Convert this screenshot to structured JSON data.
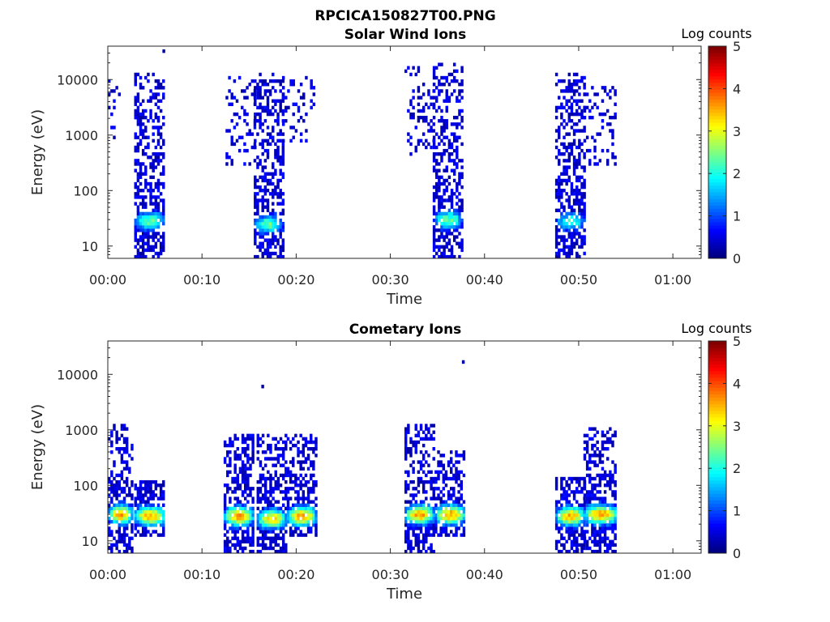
{
  "figure_title": "RPCICA150827T00.PNG",
  "chart_data": [
    {
      "type": "heatmap",
      "title": "Solar Wind Ions",
      "xlabel": "Time",
      "ylabel": "Energy (eV)",
      "x_ticks": [
        "00:00",
        "00:10",
        "00:20",
        "00:30",
        "00:40",
        "00:50",
        "01:00"
      ],
      "y_ticks": [
        "10",
        "100",
        "1000",
        "10000"
      ],
      "y_scale": "log",
      "xlim_minutes": [
        0,
        63
      ],
      "ylim": [
        6,
        40000
      ],
      "colorbar": {
        "label": "Log counts",
        "ticks": [
          "0",
          "1",
          "2",
          "3",
          "4",
          "5"
        ],
        "range": [
          0,
          5
        ],
        "colormap": "jet"
      },
      "bursts": [
        {
          "t0": 0.0,
          "t1": 1.3,
          "e0": 500,
          "e1": 14000,
          "peak_e": 0,
          "peak_v": 0,
          "dense": false,
          "low": false
        },
        {
          "t0": 2.8,
          "t1": 6.0,
          "e0": 6,
          "e1": 14000,
          "peak_e": 28,
          "peak_v": 2.3,
          "dense": true,
          "low": true
        },
        {
          "t0": 12.5,
          "t1": 15.5,
          "e0": 300,
          "e1": 12000,
          "peak_e": 0,
          "peak_v": 0,
          "dense": false,
          "low": false
        },
        {
          "t0": 15.5,
          "t1": 18.5,
          "e0": 6,
          "e1": 14000,
          "peak_e": 25,
          "peak_v": 2.3,
          "dense": true,
          "low": true
        },
        {
          "t0": 18.5,
          "t1": 21.8,
          "e0": 700,
          "e1": 12000,
          "peak_e": 0,
          "peak_v": 0,
          "dense": false,
          "low": false
        },
        {
          "t0": 31.5,
          "t1": 34.5,
          "e0": 400,
          "e1": 18000,
          "peak_e": 0,
          "peak_v": 0,
          "dense": false,
          "low": false
        },
        {
          "t0": 34.5,
          "t1": 37.5,
          "e0": 6,
          "e1": 20000,
          "peak_e": 30,
          "peak_v": 2.3,
          "dense": true,
          "low": true
        },
        {
          "t0": 47.5,
          "t1": 50.5,
          "e0": 6,
          "e1": 14000,
          "peak_e": 28,
          "peak_v": 2.0,
          "dense": true,
          "low": true
        },
        {
          "t0": 50.5,
          "t1": 54.0,
          "e0": 300,
          "e1": 8000,
          "peak_e": 0,
          "peak_v": 0,
          "dense": false,
          "low": false
        }
      ],
      "isolated_points": [
        {
          "t": 5.8,
          "e": 35000
        }
      ]
    },
    {
      "type": "heatmap",
      "title": "Cometary Ions",
      "xlabel": "Time",
      "ylabel": "Energy (eV)",
      "x_ticks": [
        "00:00",
        "00:10",
        "00:20",
        "00:30",
        "00:40",
        "00:50",
        "01:00"
      ],
      "y_ticks": [
        "10",
        "100",
        "1000",
        "10000"
      ],
      "y_scale": "log",
      "xlim_minutes": [
        0,
        63
      ],
      "ylim": [
        6,
        40000
      ],
      "colorbar": {
        "label": "Log counts",
        "ticks": [
          "0",
          "1",
          "2",
          "3",
          "4",
          "5"
        ],
        "range": [
          0,
          5
        ],
        "colormap": "jet"
      },
      "bursts": [
        {
          "t0": 0.0,
          "t1": 2.5,
          "e0": 6,
          "e1": 1200,
          "peak_e": 30,
          "peak_v": 3.6,
          "dense": true,
          "low": true
        },
        {
          "t0": 2.8,
          "t1": 6.0,
          "e0": 12,
          "e1": 120,
          "peak_e": 28,
          "peak_v": 3.5,
          "dense": true,
          "low": false
        },
        {
          "t0": 12.3,
          "t1": 15.3,
          "e0": 6,
          "e1": 900,
          "peak_e": 28,
          "peak_v": 3.6,
          "dense": true,
          "low": true
        },
        {
          "t0": 15.8,
          "t1": 18.8,
          "e0": 6,
          "e1": 800,
          "peak_e": 25,
          "peak_v": 3.4,
          "dense": true,
          "low": true
        },
        {
          "t0": 19.0,
          "t1": 22.0,
          "e0": 12,
          "e1": 900,
          "peak_e": 28,
          "peak_v": 3.6,
          "dense": true,
          "low": false
        },
        {
          "t0": 31.5,
          "t1": 34.5,
          "e0": 6,
          "e1": 1200,
          "peak_e": 30,
          "peak_v": 3.6,
          "dense": true,
          "low": true
        },
        {
          "t0": 34.7,
          "t1": 37.8,
          "e0": 12,
          "e1": 400,
          "peak_e": 30,
          "peak_v": 3.6,
          "dense": true,
          "low": false
        },
        {
          "t0": 47.5,
          "t1": 50.5,
          "e0": 6,
          "e1": 150,
          "peak_e": 28,
          "peak_v": 3.5,
          "dense": true,
          "low": true
        },
        {
          "t0": 50.5,
          "t1": 54.0,
          "e0": 6,
          "e1": 1100,
          "peak_e": 30,
          "peak_v": 3.6,
          "dense": true,
          "low": true
        }
      ],
      "isolated_points": [
        {
          "t": 16.3,
          "e": 6500
        },
        {
          "t": 37.6,
          "e": 18000
        }
      ]
    }
  ]
}
